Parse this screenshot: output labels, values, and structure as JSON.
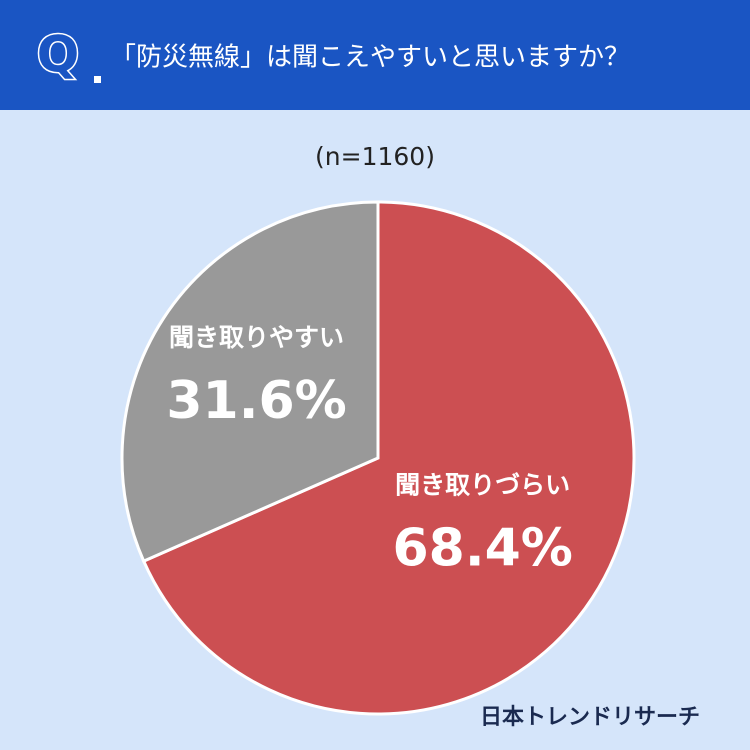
{
  "chart_data": {
    "type": "pie",
    "question_marker": "Q",
    "title": "「防災無線」は聞こえやすいと思いますか？",
    "subtitle": "(n=1160)",
    "categories": [
      "聞き取りづらい",
      "聞き取りやすい"
    ],
    "values": [
      68.4,
      31.6
    ],
    "value_labels": [
      "68.4%",
      "31.6%"
    ],
    "colors": [
      "#cc4f52",
      "#999999"
    ],
    "source": "日本トレンドリサーチ"
  }
}
